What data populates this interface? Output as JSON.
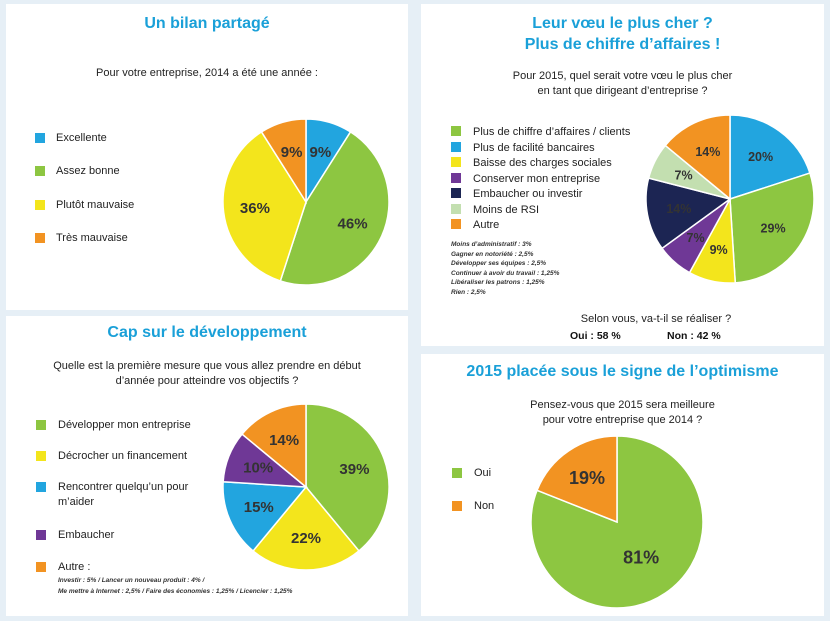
{
  "colors": {
    "green": "#8dc641",
    "blue": "#22a5df",
    "yellow": "#f3e51c",
    "orange": "#f29322",
    "purple": "#6f3896",
    "navy": "#1c2553",
    "lightgreen": "#c3dfb0",
    "title": "#1aa0d8",
    "background": "#e6eff6"
  },
  "p1": {
    "title": "Un bilan partagé",
    "question": "Pour votre entreprise, 2014 a été une année :",
    "legend": [
      "Excellente",
      "Assez bonne",
      "Plutôt mauvaise",
      "Très mauvaise"
    ]
  },
  "p2": {
    "title_line1": "Leur vœu le plus cher ?",
    "title_line2": "Plus de chiffre d’affaires !",
    "question_line1": "Pour 2015, quel serait votre vœu le plus cher",
    "question_line2": "en tant que dirigeant d’entreprise ?",
    "legend": [
      "Plus de chiffre d’affaires / clients",
      "Plus de facilité bancaires",
      "Baisse des charges sociales",
      "Conserver mon entreprise",
      "Embaucher ou investir",
      "Moins de RSI",
      "Autre"
    ],
    "notes": [
      "Moins d’administratif : 3%",
      "Gagner en notoriété : 2,5%",
      "Développer ses équipes : 2,5%",
      "Continuer à avoir du travail : 1,25%",
      "Libéraliser les patrons : 1,25%",
      "Rien : 2,5%"
    ],
    "sub_question": "Selon vous, va-t-il se réaliser ?",
    "yes": "Oui : 58 %",
    "no": "Non : 42 %"
  },
  "p3": {
    "title": "Cap sur le développement",
    "question_line1": "Quelle est la première mesure que vous allez prendre en début",
    "question_line2": "d’année pour atteindre vos objectifs ?",
    "legend": [
      "Développer mon entreprise",
      "Décrocher un financement",
      "Rencontrer quelqu’un pour",
      "m’aider",
      "Embaucher",
      "Autre :"
    ],
    "note1": "Investir : 5% / Lancer un nouveau produit : 4% /",
    "note2": "Me mettre à Internet : 2,5% / Faire des économies : 1,25% / Licencier : 1,25%"
  },
  "p4": {
    "title": "2015 placée sous le signe de l’optimisme",
    "question_line1": "Pensez-vous que 2015 sera meilleure",
    "question_line2": "pour votre entreprise que 2014 ?",
    "legend": [
      "Oui",
      "Non"
    ]
  },
  "chart_data": [
    {
      "type": "pie",
      "title": "Un bilan partagé",
      "categories": [
        "Excellente",
        "Assez bonne",
        "Plutôt mauvaise",
        "Très mauvaise"
      ],
      "values": [
        9,
        46,
        36,
        9
      ],
      "labels": [
        "9%",
        "46%",
        "36%",
        "9%"
      ],
      "colors": [
        "#22a5df",
        "#8dc641",
        "#f3e51c",
        "#f29322"
      ]
    },
    {
      "type": "pie",
      "title": "Leur vœu le plus cher ? Plus de chiffre d’affaires !",
      "categories": [
        "Plus de facilité bancaires",
        "Plus de chiffre d’affaires / clients",
        "Baisse des charges sociales",
        "Conserver mon entreprise",
        "Embaucher ou investir",
        "Moins de RSI",
        "Autre"
      ],
      "values": [
        20,
        29,
        9,
        7,
        14,
        7,
        14
      ],
      "labels": [
        "20%",
        "29%",
        "9%",
        "7%",
        "14%",
        "7%",
        "14%"
      ],
      "colors": [
        "#22a5df",
        "#8dc641",
        "#f3e51c",
        "#6f3896",
        "#1c2553",
        "#c3dfb0",
        "#f29322"
      ]
    },
    {
      "type": "pie",
      "title": "Cap sur le développement",
      "categories": [
        "Développer mon entreprise",
        "Décrocher un financement",
        "Rencontrer quelqu’un pour m’aider",
        "Embaucher",
        "Autre"
      ],
      "values": [
        39,
        22,
        15,
        10,
        14
      ],
      "labels": [
        "39%",
        "22%",
        "15%",
        "10%",
        "14%"
      ],
      "colors": [
        "#8dc641",
        "#f3e51c",
        "#22a5df",
        "#6f3896",
        "#f29322"
      ]
    },
    {
      "type": "pie",
      "title": "2015 placée sous le signe de l’optimisme",
      "categories": [
        "Oui",
        "Non"
      ],
      "values": [
        81,
        19
      ],
      "labels": [
        "81%",
        "19%"
      ],
      "colors": [
        "#8dc641",
        "#f29322"
      ]
    }
  ]
}
